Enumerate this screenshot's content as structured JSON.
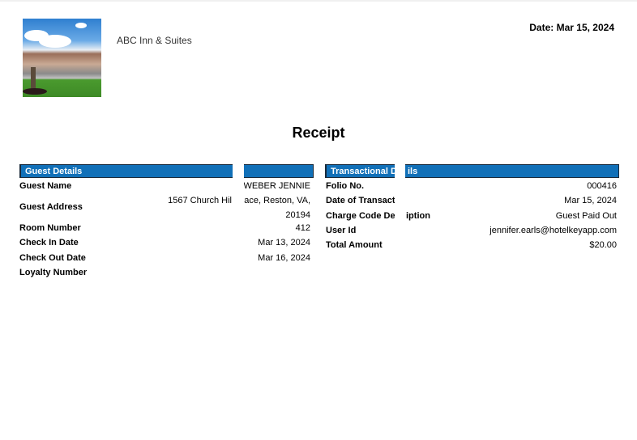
{
  "header": {
    "hotel_name": "ABC Inn & Suites",
    "date": "Date: Mar 15, 2024"
  },
  "title": "Receipt",
  "guest": {
    "heading": "Guest Details",
    "rows": [
      {
        "label": "Guest Name",
        "value": "WEBER JENNIE"
      },
      {
        "label": "Guest Address",
        "value_line1_left": "1567 Church Hil",
        "value_line1_right": "lace, Reston, VA,",
        "value_line2": "20194"
      },
      {
        "label": "Room Number",
        "value": "412"
      },
      {
        "label": "Check In Date",
        "value": "Mar 13, 2024"
      },
      {
        "label": "Check Out Date",
        "value": "Mar 16, 2024"
      },
      {
        "label": "Loyalty Number",
        "value": ""
      }
    ]
  },
  "transaction": {
    "heading_left": "Transactional D",
    "heading_right": "ils",
    "rows": [
      {
        "label": "Folio No.",
        "value": "000416"
      },
      {
        "label": "Date of Transact",
        "value": "Mar 15, 2024"
      },
      {
        "label_left": "Charge Code De",
        "label_right": "iption",
        "value": "Guest Paid Out"
      },
      {
        "label": "User Id",
        "value": "jennifer.earls@hotelkeyapp.com"
      },
      {
        "label": "Total Amount",
        "value": "$20.00"
      }
    ]
  },
  "colors": {
    "header_bar": "#1170b8"
  }
}
